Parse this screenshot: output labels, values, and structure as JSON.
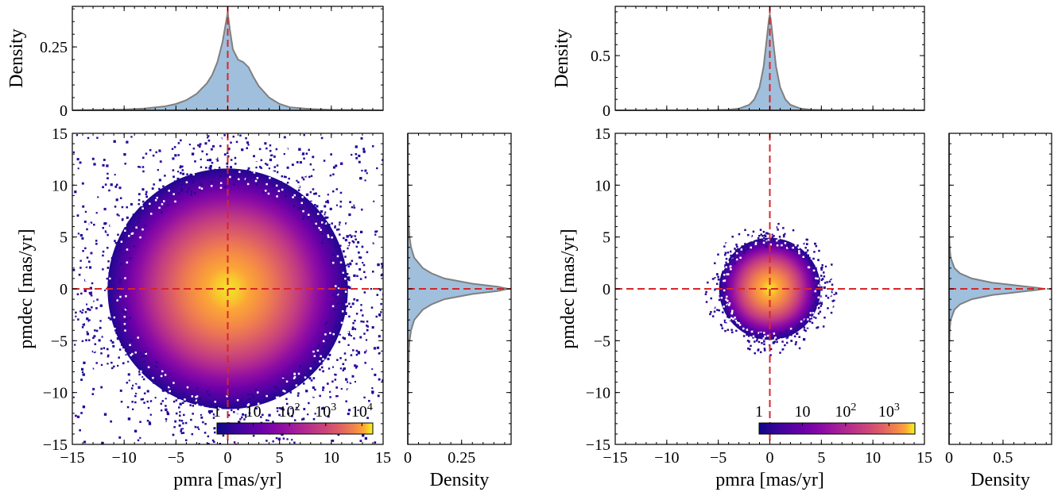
{
  "chart_data": [
    {
      "type": "heatmap",
      "title": "",
      "main": {
        "xlabel": "pmra [mas/yr]",
        "ylabel": "pmdec [mas/yr]",
        "xlim": [
          -15,
          15
        ],
        "ylim": [
          -15,
          15
        ],
        "xticks": [
          -15,
          -10,
          -5,
          0,
          5,
          10,
          15
        ],
        "yticks": [
          -15,
          -10,
          -5,
          0,
          5,
          10,
          15
        ],
        "xtick_labels": [
          "−15",
          "−10",
          "−5",
          "0",
          "5",
          "10",
          "15"
        ],
        "ytick_labels": [
          "−15",
          "−10",
          "−5",
          "0",
          "5",
          "10",
          "15"
        ],
        "density_peak": {
          "x": 0.0,
          "y": 0.0
        },
        "core_sigma": 4.0,
        "extent_radius": 15,
        "scale": "log",
        "colormap": "plasma",
        "colorbar_location": "lower-right",
        "colorbar_ticks": [
          "1",
          "10",
          "10^2",
          "10^3",
          "10^4"
        ],
        "colorbar_tick_display": [
          {
            "base": "1",
            "exp": ""
          },
          {
            "base": "10",
            "exp": ""
          },
          {
            "base": "10",
            "exp": "2"
          },
          {
            "base": "10",
            "exp": "3"
          },
          {
            "base": "10",
            "exp": "4"
          }
        ],
        "colorbar_range_log10": [
          0,
          4.3
        ],
        "reference_lines": {
          "x": 0,
          "y": 0,
          "color": "#d62728",
          "style": "dashed"
        }
      },
      "top_marginal": {
        "ylabel": "Density",
        "ylim": [
          0,
          0.41
        ],
        "yticks": [
          0,
          0.25
        ],
        "ytick_labels": [
          "0",
          "0.25"
        ],
        "x": [
          -15,
          -10,
          -8,
          -6,
          -5,
          -4,
          -3,
          -2,
          -1.5,
          -1,
          -0.5,
          -0.2,
          0,
          0.2,
          0.5,
          1,
          1.5,
          2,
          2.5,
          3,
          4,
          5,
          6,
          8,
          10,
          15
        ],
        "density": [
          0.0,
          0.003,
          0.007,
          0.016,
          0.025,
          0.04,
          0.065,
          0.107,
          0.14,
          0.19,
          0.27,
          0.34,
          0.385,
          0.32,
          0.24,
          0.2,
          0.19,
          0.17,
          0.13,
          0.095,
          0.05,
          0.025,
          0.012,
          0.005,
          0.002,
          0.0
        ]
      },
      "right_marginal": {
        "xlabel": "Density",
        "xlim": [
          0,
          0.48
        ],
        "xticks": [
          0,
          0.25
        ],
        "xtick_labels": [
          "0",
          "0.25"
        ],
        "y": [
          -15,
          -10,
          -8,
          -6,
          -5,
          -4,
          -3,
          -2,
          -1.5,
          -1,
          -0.5,
          -0.2,
          0,
          0.2,
          0.5,
          1,
          1.5,
          2,
          3,
          4,
          5,
          6,
          8,
          10,
          15
        ],
        "density": [
          0.0,
          0.001,
          0.003,
          0.005,
          0.008,
          0.015,
          0.03,
          0.07,
          0.11,
          0.17,
          0.3,
          0.42,
          0.465,
          0.42,
          0.3,
          0.17,
          0.11,
          0.07,
          0.03,
          0.015,
          0.008,
          0.005,
          0.003,
          0.001,
          0.0
        ]
      }
    },
    {
      "type": "heatmap",
      "title": "",
      "main": {
        "xlabel": "pmra [mas/yr]",
        "ylabel": "pmdec [mas/yr]",
        "xlim": [
          -15,
          15
        ],
        "ylim": [
          -15,
          15
        ],
        "xticks": [
          -15,
          -10,
          -5,
          0,
          5,
          10,
          15
        ],
        "yticks": [
          -15,
          -10,
          -5,
          0,
          5,
          10,
          15
        ],
        "xtick_labels": [
          "−15",
          "−10",
          "−5",
          "0",
          "5",
          "10",
          "15"
        ],
        "ytick_labels": [
          "−15",
          "−10",
          "−5",
          "0",
          "5",
          "10",
          "15"
        ],
        "density_peak": {
          "x": 0.0,
          "y": 0.0
        },
        "core_sigma": 1.7,
        "extent_radius": 6,
        "scale": "log",
        "colormap": "plasma",
        "colorbar_location": "lower-right",
        "colorbar_ticks": [
          "1",
          "10",
          "10^2",
          "10^3"
        ],
        "colorbar_tick_display": [
          {
            "base": "1",
            "exp": ""
          },
          {
            "base": "10",
            "exp": ""
          },
          {
            "base": "10",
            "exp": "2"
          },
          {
            "base": "10",
            "exp": "3"
          }
        ],
        "colorbar_range_log10": [
          0,
          3.6
        ],
        "reference_lines": {
          "x": 0,
          "y": 0,
          "color": "#d62728",
          "style": "dashed"
        }
      },
      "top_marginal": {
        "ylabel": "Density",
        "ylim": [
          0,
          0.95
        ],
        "yticks": [
          0,
          0.5
        ],
        "ytick_labels": [
          "0",
          "0.5"
        ],
        "x": [
          -15,
          -6,
          -4,
          -3,
          -2,
          -1.5,
          -1,
          -0.6,
          -0.3,
          -0.1,
          0,
          0.1,
          0.3,
          0.6,
          1,
          1.5,
          2,
          3,
          4,
          6,
          15
        ],
        "density": [
          0.0,
          0.0,
          0.005,
          0.015,
          0.05,
          0.1,
          0.21,
          0.4,
          0.65,
          0.82,
          0.88,
          0.82,
          0.65,
          0.4,
          0.21,
          0.1,
          0.05,
          0.015,
          0.005,
          0.0,
          0.0
        ]
      },
      "right_marginal": {
        "xlabel": "Density",
        "xlim": [
          0,
          0.95
        ],
        "xticks": [
          0,
          0.5
        ],
        "xtick_labels": [
          "0",
          "0.5"
        ],
        "y": [
          -15,
          -6,
          -4,
          -3,
          -2,
          -1.5,
          -1,
          -0.6,
          -0.3,
          -0.1,
          0,
          0.1,
          0.3,
          0.6,
          1,
          1.5,
          2,
          3,
          4,
          6,
          15
        ],
        "density": [
          0.0,
          0.0,
          0.005,
          0.015,
          0.05,
          0.1,
          0.21,
          0.4,
          0.65,
          0.82,
          0.88,
          0.82,
          0.65,
          0.4,
          0.21,
          0.1,
          0.05,
          0.015,
          0.005,
          0.0,
          0.0
        ]
      }
    }
  ]
}
